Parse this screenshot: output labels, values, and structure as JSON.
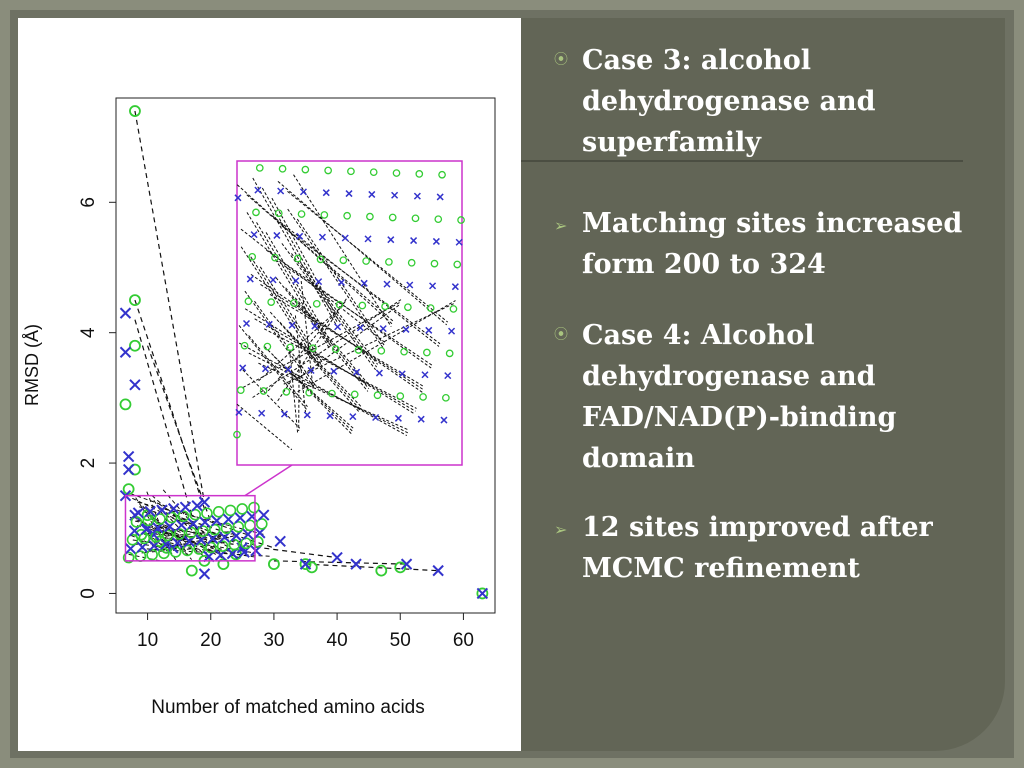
{
  "slide": {
    "bullets": [
      {
        "marker": "circle-bullet",
        "text": "Case 3: alcohol dehydrogenase and superfamily"
      },
      {
        "marker": "arrow-bullet",
        "text": "Matching sites increased form 200 to 324"
      },
      {
        "marker": "circle-bullet",
        "text": " Case 4: Alcohol dehydrogenase and FAD/NAD(P)-binding domain"
      },
      {
        "marker": "arrow-bullet",
        "text": "12 sites improved after MCMC refinement"
      }
    ],
    "colors": {
      "background": "#626556",
      "text": "#ffffff",
      "bullet": "#a9c47f",
      "inset_box": "#cc33cc"
    }
  },
  "chart_data": {
    "type": "scatter",
    "xlabel": "Number of matched amino acids",
    "ylabel": "RMSD (Å)",
    "xlim": [
      5,
      65
    ],
    "ylim": [
      -0.3,
      7.6
    ],
    "xticks": [
      "10",
      "20",
      "30",
      "40",
      "50",
      "60"
    ],
    "yticks": [
      "0",
      "2",
      "4",
      "6"
    ],
    "series": [
      {
        "name": "",
        "marker": "o",
        "color": "#33cc33",
        "x": [
          8,
          8,
          8,
          6.5,
          8,
          7,
          10,
          9,
          12,
          13,
          17,
          19,
          22,
          24,
          30,
          35,
          36,
          47,
          50,
          63
        ],
        "y": [
          7.4,
          4.5,
          3.8,
          2.9,
          1.9,
          1.6,
          1.2,
          0.9,
          0.8,
          0.7,
          0.35,
          0.5,
          0.45,
          0.6,
          0.45,
          0.45,
          0.4,
          0.35,
          0.4,
          0.0
        ]
      },
      {
        "name": "",
        "marker": "x",
        "color": "#3333cc",
        "x": [
          6.5,
          6.5,
          8,
          7,
          7,
          6.5,
          8,
          10,
          11,
          14,
          19,
          19,
          25,
          31,
          35,
          40,
          43,
          51,
          56,
          63
        ],
        "y": [
          4.3,
          3.7,
          3.2,
          2.1,
          1.9,
          1.5,
          1.2,
          1.0,
          0.9,
          0.7,
          0.3,
          1.4,
          0.7,
          0.8,
          0.45,
          0.55,
          0.45,
          0.45,
          0.35,
          0.0
        ]
      }
    ],
    "pairs": [
      [
        8,
        7.4,
        19,
        1.4
      ],
      [
        8,
        4.5,
        19,
        1.3
      ],
      [
        8,
        4.2,
        17,
        1.2
      ],
      [
        10,
        3.8,
        20,
        1.1
      ],
      [
        14,
        1.2,
        30,
        0.7
      ],
      [
        20,
        0.8,
        40,
        0.55
      ],
      [
        35,
        0.45,
        56,
        0.35
      ],
      [
        30,
        0.5,
        51,
        0.45
      ]
    ],
    "grid": false,
    "inset": {
      "xlim": [
        6.5,
        27
      ],
      "ylim": [
        0.5,
        1.5
      ]
    }
  }
}
